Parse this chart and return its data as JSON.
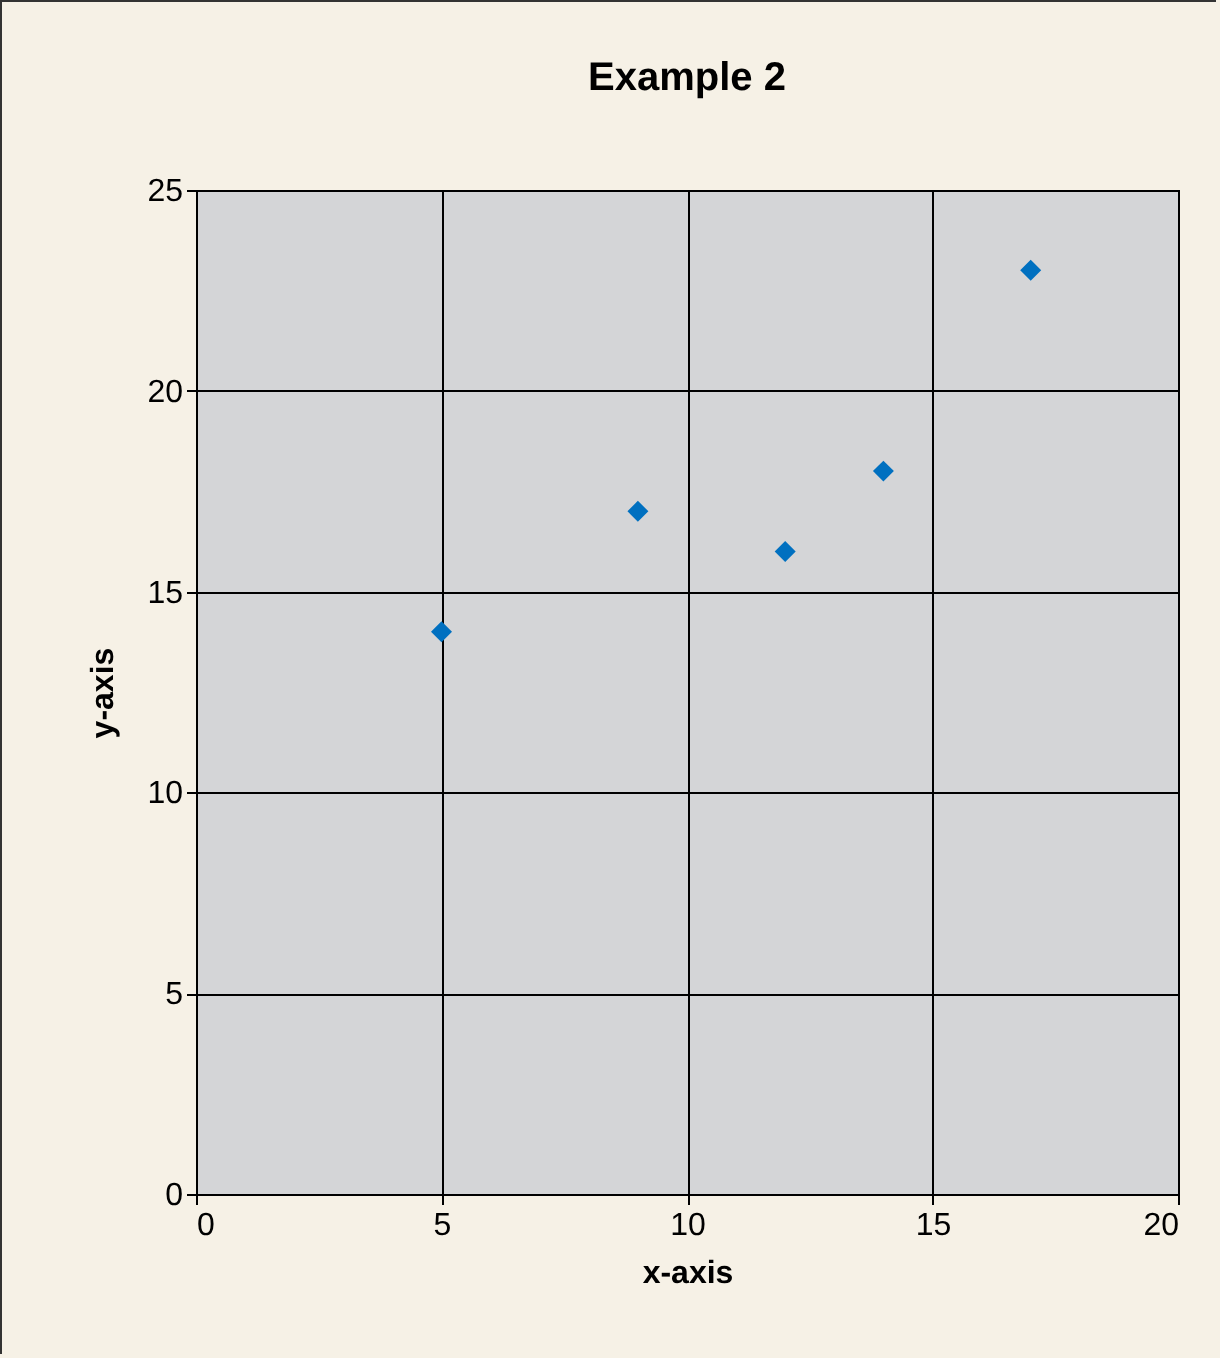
{
  "chart_data": {
    "type": "scatter",
    "title": "Example 2",
    "xlabel": "x-axis",
    "ylabel": "y-axis",
    "x": [
      5,
      9,
      12,
      14,
      17
    ],
    "series": [
      {
        "color": "#0070c0",
        "values": [
          14,
          17,
          16,
          18,
          23
        ]
      }
    ],
    "xlim": [
      0,
      20
    ],
    "ylim": [
      0,
      25
    ],
    "xticks": [
      0,
      5,
      10,
      15,
      20
    ],
    "yticks": [
      0,
      5,
      10,
      15,
      20,
      25
    ],
    "grid": true,
    "marker": "diamond"
  }
}
